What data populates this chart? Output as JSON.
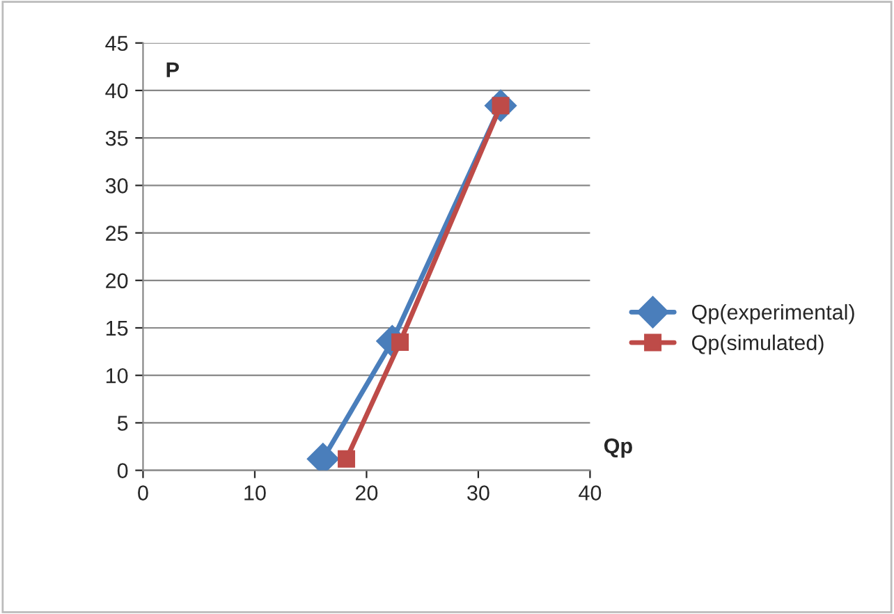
{
  "chart_data": {
    "type": "line",
    "xlabel": "Qp",
    "ylabel": "P",
    "series": [
      {
        "name": "Qp(experimental)",
        "color": "#4a7ebb",
        "marker": "diamond",
        "x": [
          16.1,
          22.3,
          32.0
        ],
        "values": [
          1.2,
          13.6,
          38.4
        ]
      },
      {
        "name": "Qp(simulated)",
        "color": "#be4b48",
        "marker": "square",
        "x": [
          18.2,
          23.0,
          32.0
        ],
        "values": [
          1.2,
          13.5,
          38.4
        ]
      }
    ],
    "xlim": [
      0,
      40
    ],
    "xticks": [
      0,
      10,
      20,
      30,
      40
    ],
    "ylim": [
      0,
      45
    ],
    "yticks": [
      0,
      5,
      10,
      15,
      20,
      25,
      30,
      35,
      40,
      45
    ],
    "grid": "y",
    "legend": "right",
    "line_style": "solid"
  }
}
